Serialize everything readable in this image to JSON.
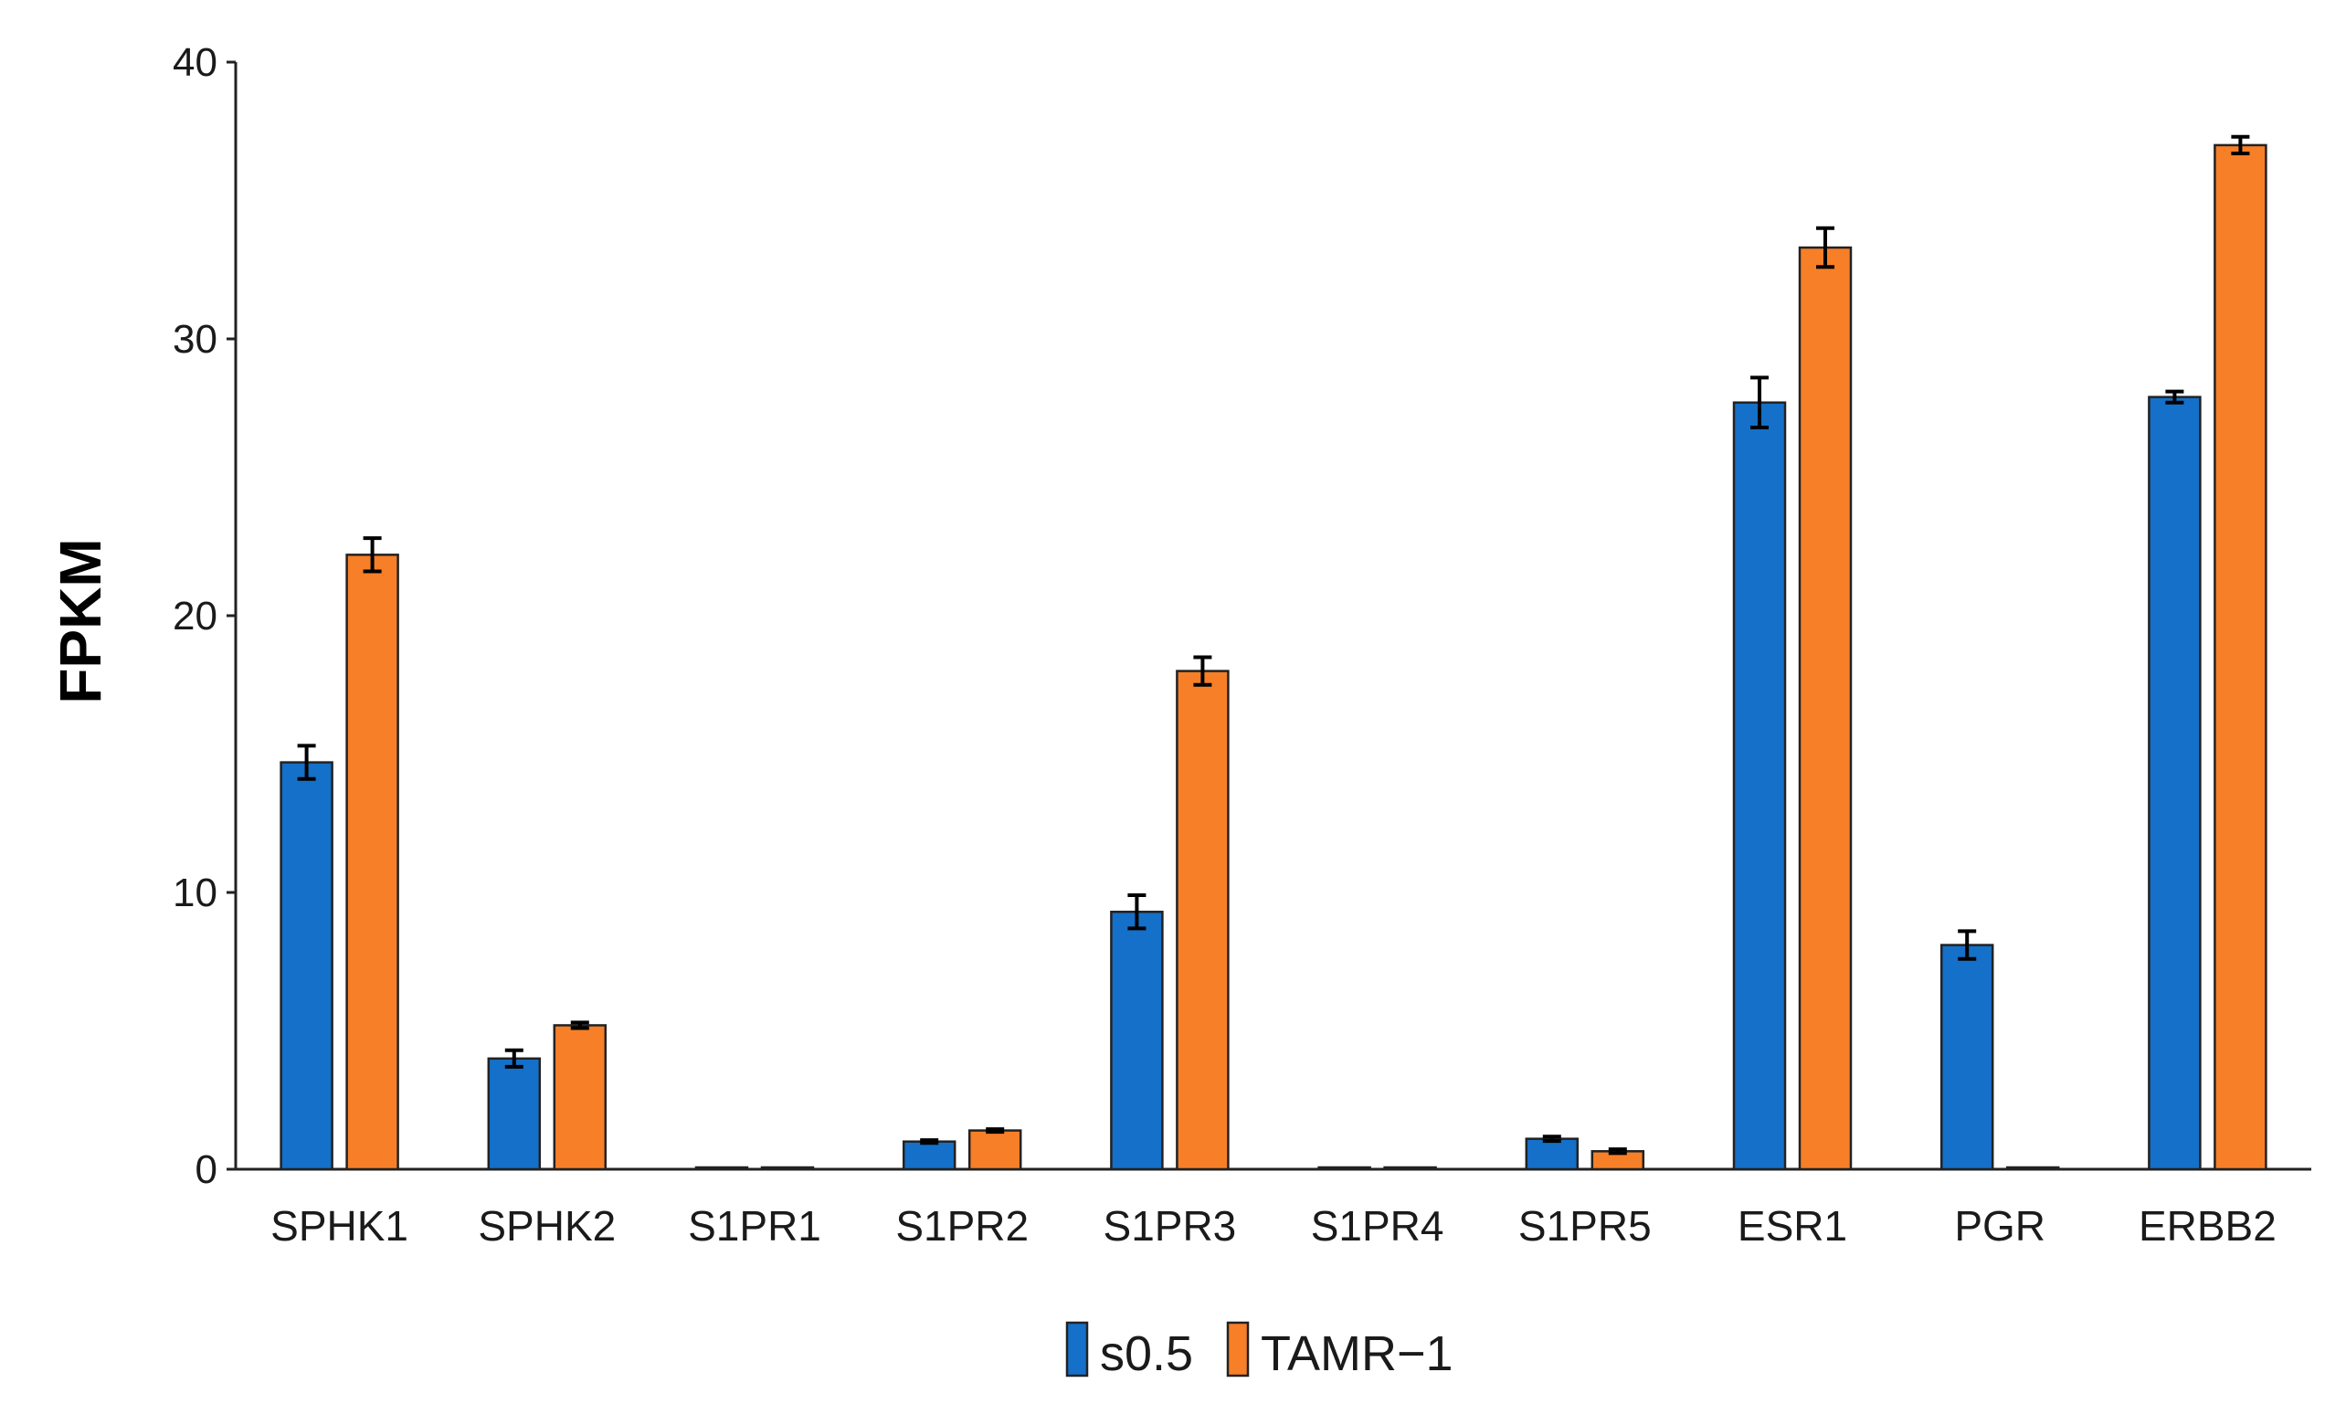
{
  "chart_data": {
    "type": "bar",
    "title": "",
    "xlabel": "",
    "ylabel": "FPKM",
    "ylim": [
      0,
      40
    ],
    "yticks": [
      0,
      10,
      20,
      30,
      40
    ],
    "grid": false,
    "legend_position": "bottom-center",
    "categories": [
      "SPHK1",
      "SPHK2",
      "S1PR1",
      "S1PR2",
      "S1PR3",
      "S1PR4",
      "S1PR5",
      "ESR1",
      "PGR",
      "ERBB2"
    ],
    "series": [
      {
        "name": "s0.5",
        "color": "#1470c8",
        "values": [
          14.7,
          4.0,
          0.05,
          1.0,
          9.3,
          0.05,
          1.1,
          27.7,
          8.1,
          27.9
        ],
        "errors": [
          0.6,
          0.3,
          0.02,
          0.05,
          0.6,
          0.02,
          0.08,
          0.9,
          0.5,
          0.2
        ]
      },
      {
        "name": "TAMR−1",
        "color": "#f77f27",
        "values": [
          22.2,
          5.2,
          0.05,
          1.4,
          18.0,
          0.05,
          0.65,
          33.3,
          0.05,
          37.0
        ],
        "errors": [
          0.6,
          0.1,
          0.02,
          0.05,
          0.5,
          0.02,
          0.07,
          0.7,
          0.02,
          0.3
        ]
      }
    ]
  }
}
